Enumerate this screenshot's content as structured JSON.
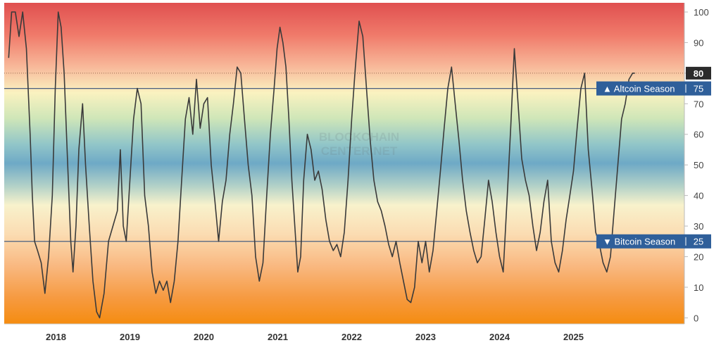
{
  "chart_data": {
    "type": "line",
    "title": "",
    "xlabel": "",
    "ylabel": "",
    "x_range": [
      2017.35,
      2026.55
    ],
    "ylim": [
      -2,
      103
    ],
    "y_ticks": [
      0,
      10,
      20,
      30,
      40,
      50,
      60,
      70,
      80,
      90,
      100
    ],
    "x_ticks": [
      {
        "year": 2018,
        "label": "2018"
      },
      {
        "year": 2019,
        "label": "2019"
      },
      {
        "year": 2020,
        "label": "2020"
      },
      {
        "year": 2021,
        "label": "2021"
      },
      {
        "year": 2022,
        "label": "2022"
      },
      {
        "year": 2023,
        "label": "2023"
      },
      {
        "year": 2024,
        "label": "2024"
      },
      {
        "year": 2025,
        "label": "2025"
      }
    ],
    "grid": false,
    "background": "vertical gradient: red at 100, yellow near 70, green near 60, blue near 50, cream near 35, orange at 0",
    "current_value": {
      "value": 80,
      "label": "80"
    },
    "thresholds": [
      {
        "value": 75,
        "label": "▲ Altcoin Season",
        "value_label": "75"
      },
      {
        "value": 25,
        "label": "▼ Bitcoin Season",
        "value_label": "25"
      }
    ],
    "series": [
      {
        "points": [
          [
            2017.41,
            85
          ],
          [
            2017.45,
            100
          ],
          [
            2017.5,
            100
          ],
          [
            2017.55,
            92
          ],
          [
            2017.6,
            100
          ],
          [
            2017.65,
            88
          ],
          [
            2017.7,
            60
          ],
          [
            2017.73,
            40
          ],
          [
            2017.76,
            25
          ],
          [
            2017.8,
            22
          ],
          [
            2017.85,
            18
          ],
          [
            2017.9,
            8
          ],
          [
            2017.95,
            20
          ],
          [
            2018.0,
            40
          ],
          [
            2018.04,
            75
          ],
          [
            2018.08,
            100
          ],
          [
            2018.12,
            95
          ],
          [
            2018.16,
            80
          ],
          [
            2018.2,
            55
          ],
          [
            2018.25,
            25
          ],
          [
            2018.28,
            15
          ],
          [
            2018.32,
            30
          ],
          [
            2018.36,
            55
          ],
          [
            2018.41,
            70
          ],
          [
            2018.45,
            50
          ],
          [
            2018.5,
            30
          ],
          [
            2018.55,
            12
          ],
          [
            2018.6,
            2
          ],
          [
            2018.64,
            0
          ],
          [
            2018.7,
            8
          ],
          [
            2018.76,
            25
          ],
          [
            2018.82,
            30
          ],
          [
            2018.88,
            35
          ],
          [
            2018.92,
            55
          ],
          [
            2018.96,
            30
          ],
          [
            2019.0,
            25
          ],
          [
            2019.05,
            45
          ],
          [
            2019.1,
            65
          ],
          [
            2019.15,
            75
          ],
          [
            2019.2,
            70
          ],
          [
            2019.25,
            40
          ],
          [
            2019.3,
            30
          ],
          [
            2019.35,
            15
          ],
          [
            2019.4,
            8
          ],
          [
            2019.45,
            12
          ],
          [
            2019.5,
            9
          ],
          [
            2019.55,
            12
          ],
          [
            2019.6,
            5
          ],
          [
            2019.65,
            12
          ],
          [
            2019.7,
            25
          ],
          [
            2019.75,
            45
          ],
          [
            2019.8,
            65
          ],
          [
            2019.85,
            72
          ],
          [
            2019.9,
            60
          ],
          [
            2019.95,
            78
          ],
          [
            2020.0,
            62
          ],
          [
            2020.05,
            70
          ],
          [
            2020.1,
            72
          ],
          [
            2020.15,
            50
          ],
          [
            2020.2,
            38
          ],
          [
            2020.25,
            25
          ],
          [
            2020.3,
            38
          ],
          [
            2020.35,
            45
          ],
          [
            2020.4,
            60
          ],
          [
            2020.45,
            70
          ],
          [
            2020.5,
            82
          ],
          [
            2020.55,
            80
          ],
          [
            2020.6,
            65
          ],
          [
            2020.65,
            50
          ],
          [
            2020.7,
            40
          ],
          [
            2020.75,
            20
          ],
          [
            2020.8,
            12
          ],
          [
            2020.85,
            18
          ],
          [
            2020.9,
            40
          ],
          [
            2020.95,
            60
          ],
          [
            2021.0,
            75
          ],
          [
            2021.04,
            88
          ],
          [
            2021.08,
            95
          ],
          [
            2021.12,
            90
          ],
          [
            2021.16,
            82
          ],
          [
            2021.2,
            65
          ],
          [
            2021.24,
            45
          ],
          [
            2021.28,
            30
          ],
          [
            2021.32,
            15
          ],
          [
            2021.36,
            20
          ],
          [
            2021.4,
            45
          ],
          [
            2021.45,
            60
          ],
          [
            2021.5,
            55
          ],
          [
            2021.55,
            45
          ],
          [
            2021.6,
            48
          ],
          [
            2021.65,
            42
          ],
          [
            2021.7,
            32
          ],
          [
            2021.75,
            25
          ],
          [
            2021.8,
            22
          ],
          [
            2021.85,
            24
          ],
          [
            2021.9,
            20
          ],
          [
            2021.95,
            28
          ],
          [
            2022.0,
            45
          ],
          [
            2022.05,
            65
          ],
          [
            2022.1,
            82
          ],
          [
            2022.15,
            97
          ],
          [
            2022.2,
            92
          ],
          [
            2022.25,
            75
          ],
          [
            2022.3,
            58
          ],
          [
            2022.35,
            45
          ],
          [
            2022.4,
            38
          ],
          [
            2022.45,
            35
          ],
          [
            2022.5,
            30
          ],
          [
            2022.55,
            24
          ],
          [
            2022.6,
            20
          ],
          [
            2022.65,
            25
          ],
          [
            2022.7,
            18
          ],
          [
            2022.75,
            12
          ],
          [
            2022.8,
            6
          ],
          [
            2022.85,
            5
          ],
          [
            2022.9,
            10
          ],
          [
            2022.95,
            25
          ],
          [
            2023.0,
            18
          ],
          [
            2023.05,
            25
          ],
          [
            2023.1,
            15
          ],
          [
            2023.15,
            22
          ],
          [
            2023.2,
            35
          ],
          [
            2023.25,
            48
          ],
          [
            2023.3,
            62
          ],
          [
            2023.35,
            75
          ],
          [
            2023.4,
            82
          ],
          [
            2023.45,
            70
          ],
          [
            2023.5,
            58
          ],
          [
            2023.55,
            45
          ],
          [
            2023.6,
            35
          ],
          [
            2023.65,
            28
          ],
          [
            2023.7,
            22
          ],
          [
            2023.75,
            18
          ],
          [
            2023.8,
            20
          ],
          [
            2023.85,
            32
          ],
          [
            2023.9,
            45
          ],
          [
            2023.95,
            38
          ],
          [
            2024.0,
            28
          ],
          [
            2024.05,
            20
          ],
          [
            2024.1,
            15
          ],
          [
            2024.15,
            38
          ],
          [
            2024.2,
            62
          ],
          [
            2024.25,
            88
          ],
          [
            2024.3,
            70
          ],
          [
            2024.35,
            52
          ],
          [
            2024.4,
            45
          ],
          [
            2024.45,
            40
          ],
          [
            2024.5,
            30
          ],
          [
            2024.55,
            22
          ],
          [
            2024.6,
            28
          ],
          [
            2024.65,
            38
          ],
          [
            2024.7,
            45
          ],
          [
            2024.75,
            25
          ],
          [
            2024.8,
            18
          ],
          [
            2024.85,
            15
          ],
          [
            2024.9,
            22
          ],
          [
            2024.95,
            32
          ],
          [
            2025.0,
            40
          ],
          [
            2025.05,
            48
          ],
          [
            2025.1,
            62
          ],
          [
            2025.15,
            75
          ],
          [
            2025.2,
            80
          ],
          [
            2025.25,
            55
          ],
          [
            2025.3,
            42
          ],
          [
            2025.35,
            28
          ],
          [
            2025.4,
            24
          ],
          [
            2025.45,
            18
          ],
          [
            2025.5,
            15
          ],
          [
            2025.55,
            20
          ],
          [
            2025.6,
            35
          ],
          [
            2025.65,
            50
          ],
          [
            2025.7,
            65
          ],
          [
            2025.75,
            70
          ],
          [
            2025.8,
            78
          ],
          [
            2025.85,
            80
          ],
          [
            2025.88,
            80
          ]
        ]
      }
    ]
  },
  "colors": {
    "line": "#3a3a3a",
    "threshold_line": "#4a5f80",
    "tag_blue": "#2f5f9a",
    "current_tag": "#2b2b2b",
    "dotted_line": "#9a6a50"
  },
  "watermark": {
    "line1": "BLOCKCHAIN",
    "line2": "CENTER.NET"
  }
}
